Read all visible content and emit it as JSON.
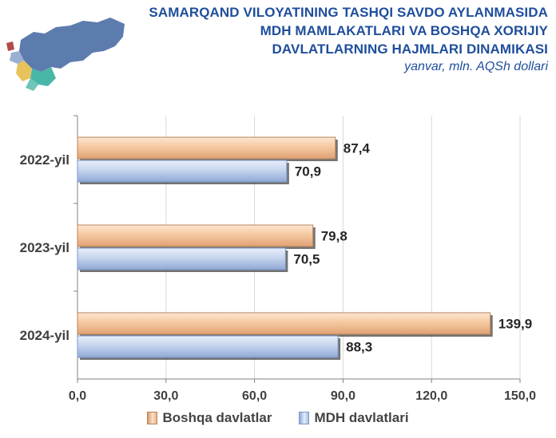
{
  "header": {
    "title_lines": [
      "SAMARQAND VILOYATINING TASHQI SAVDO AYLANMASIDA",
      "MDH MAMLAKATLARI VA BOSHQA XORIJIY",
      "DAVLATLARNING HAJMLARI DINAMIKASI"
    ],
    "subtitle": "yanvar, mln. AQSh dollari"
  },
  "chart_data": {
    "type": "bar",
    "orientation": "horizontal",
    "categories": [
      "2022-yil",
      "2023-yil",
      "2024-yil"
    ],
    "series": [
      {
        "name": "Boshqa davlatlar",
        "values": [
          87.4,
          79.8,
          139.9
        ],
        "labels": [
          "87,4",
          "79,8",
          "139,9"
        ],
        "color": "#f7cfa9"
      },
      {
        "name": "MDH davlatlari",
        "values": [
          70.9,
          70.5,
          88.3
        ],
        "labels": [
          "70,9",
          "70,5",
          "88,3"
        ],
        "color": "#c9d7ee"
      }
    ],
    "xlim": [
      0,
      150
    ],
    "xticks": [
      0,
      30,
      60,
      90,
      120,
      150
    ],
    "xtick_labels": [
      "0,0",
      "30,0",
      "60,0",
      "90,0",
      "120,0",
      "150,0"
    ],
    "grid": true,
    "legend_position": "bottom"
  },
  "colors": {
    "title": "#1f4e9c",
    "orange_bar": "#f7cfa9",
    "blue_bar": "#c9d7ee",
    "grid": "#d9d9d9"
  }
}
